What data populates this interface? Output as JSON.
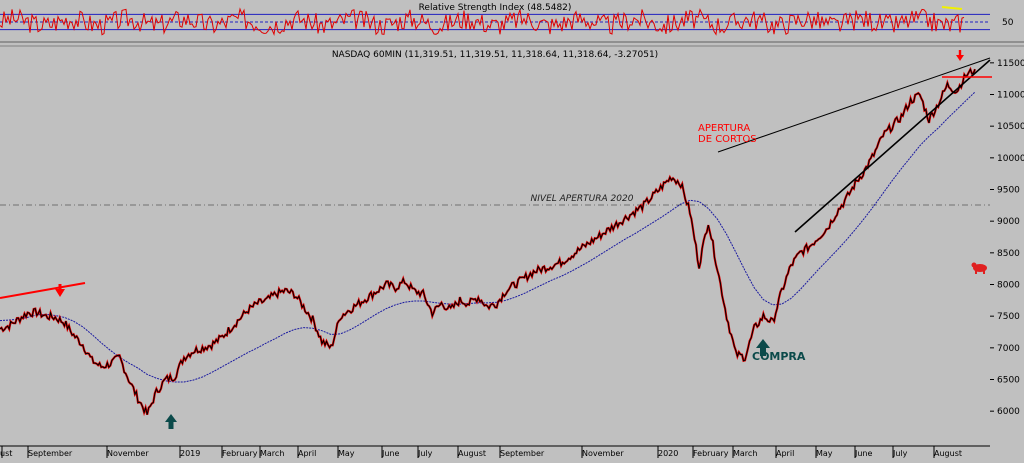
{
  "colors": {
    "background": "#c0c0c0",
    "price_line": "#000000",
    "price_red": "#e00000",
    "moving_average": "#1a1aa0",
    "rsi_line": "#e00000",
    "rsi_band": "#2020c0",
    "annotation_red": "#ff0000",
    "arrow_teal": "#0b4a4a",
    "rsi_highlight": "#f0f000"
  },
  "chart_data": [
    {
      "type": "line",
      "title": "Relative Strength Index (48.5482)",
      "ylim": [
        0,
        100
      ],
      "yticks": [
        50
      ],
      "band_levels": [
        30,
        50,
        70
      ],
      "last_value": 48.5482
    },
    {
      "type": "line",
      "title": "NASDAQ 60MIN (11,319.51, 11,319.51, 11,318.64, 11,318.64, -3.27051)",
      "ylim": [
        5450,
        11750
      ],
      "yticks": [
        6000,
        6500,
        7000,
        7500,
        8000,
        8500,
        9000,
        9500,
        10000,
        10500,
        11000,
        11500
      ],
      "x_tick_labels": [
        "ust",
        "September",
        "November",
        "2019",
        "February",
        "March",
        "April",
        "May",
        "June",
        "July",
        "August",
        "September",
        "November",
        "2020",
        "February",
        "March",
        "April",
        "May",
        "June",
        "July",
        "August"
      ],
      "series": [
        {
          "values": [
            7300,
            7350,
            7450,
            7550,
            7560,
            7500,
            7480,
            7400,
            7200,
            7050,
            6800,
            6700,
            6750,
            6850,
            6500,
            6200,
            5950,
            6300,
            6500,
            6550,
            6850,
            6950,
            7000,
            7050,
            7150,
            7300,
            7450,
            7600,
            7700,
            7750,
            7850,
            7900,
            7850,
            7650,
            7450,
            7100,
            7000,
            7500,
            7600,
            7700,
            7800,
            7900,
            8000,
            7950,
            8050,
            7900,
            7850,
            7550,
            7700,
            7600,
            7750,
            7700,
            7800,
            7650,
            7700,
            7900,
            8000,
            8100,
            8200,
            8250,
            8300,
            8350,
            8450,
            8550,
            8650,
            8750,
            8850,
            8950,
            9050,
            9150,
            9250,
            9400,
            9550,
            9700,
            9600,
            9150,
            8300,
            9000,
            8250,
            7500,
            6900,
            6850,
            7300,
            7500,
            7400,
            7900,
            8300,
            8500,
            8600,
            8750,
            8900,
            9150,
            9350,
            9600,
            9800,
            10050,
            10350,
            10500,
            10650,
            10900,
            11000,
            10600,
            10850,
            11150,
            11050,
            11300,
            11400
          ]
        },
        {
          "values": [
            7430,
            7440,
            7450,
            7480,
            7520,
            7530,
            7510,
            7480,
            7420,
            7330,
            7210,
            7080,
            6960,
            6850,
            6760,
            6680,
            6580,
            6520,
            6480,
            6460,
            6460,
            6490,
            6540,
            6610,
            6690,
            6770,
            6850,
            6930,
            7000,
            7080,
            7150,
            7230,
            7290,
            7320,
            7310,
            7270,
            7210,
            7220,
            7280,
            7360,
            7450,
            7540,
            7620,
            7680,
            7720,
            7740,
            7740,
            7720,
            7700,
            7690,
            7690,
            7700,
            7710,
            7710,
            7720,
            7750,
            7800,
            7860,
            7930,
            8000,
            8070,
            8130,
            8200,
            8280,
            8360,
            8450,
            8540,
            8630,
            8720,
            8800,
            8890,
            8980,
            9070,
            9170,
            9270,
            9330,
            9310,
            9200,
            9030,
            8790,
            8510,
            8220,
            7950,
            7760,
            7680,
            7690,
            7780,
            7920,
            8080,
            8240,
            8390,
            8540,
            8700,
            8870,
            9050,
            9240,
            9440,
            9640,
            9830,
            10010,
            10190,
            10340,
            10470,
            10620,
            10760,
            10900,
            11040
          ]
        }
      ],
      "annotations": [
        {
          "text": "APERTURA",
          "value": 10200
        },
        {
          "text": "DE CORTOS",
          "value": 10050
        },
        {
          "text": "NIVEL APERTURA 2020",
          "value": 8750
        },
        {
          "text": "COMPRA",
          "value": 6600
        }
      ]
    }
  ]
}
